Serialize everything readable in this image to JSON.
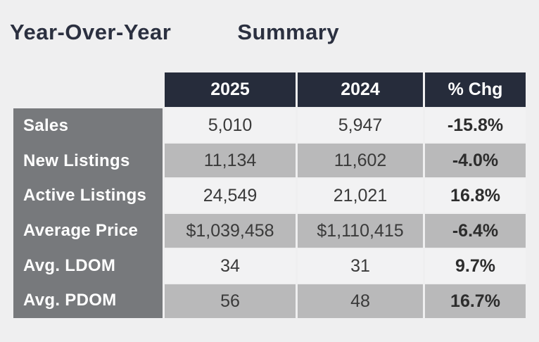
{
  "title": {
    "part1": "Year-Over-Year",
    "part2": "Summary"
  },
  "chart_data": {
    "type": "table",
    "title": "Year-Over-Year Summary",
    "columns": [
      "2025",
      "2024",
      "% Chg"
    ],
    "row_labels": [
      "Sales",
      "New Listings",
      "Active Listings",
      "Average Price",
      "Avg. LDOM",
      "Avg. PDOM"
    ],
    "rows": [
      [
        "Sales",
        "5,010",
        "5,947",
        "-15.8%"
      ],
      [
        "New Listings",
        "11,134",
        "11,602",
        "-4.0%"
      ],
      [
        "Active Listings",
        "24,549",
        "21,021",
        "16.8%"
      ],
      [
        "Average Price",
        "$1,039,458",
        "$1,110,415",
        "-6.4%"
      ],
      [
        "Avg. LDOM",
        "34",
        "31",
        "9.7%"
      ],
      [
        "Avg. PDOM",
        "56",
        "48",
        "16.7%"
      ]
    ]
  },
  "colors": {
    "page_background": "#efeff0",
    "header_background": "#262c3b",
    "label_column_background": "#77797c",
    "row_light": "#f2f2f3",
    "row_dark": "#b9b9ba",
    "title_text": "#2b3040",
    "header_text": "#ffffff",
    "value_text": "#3a3a3a"
  }
}
